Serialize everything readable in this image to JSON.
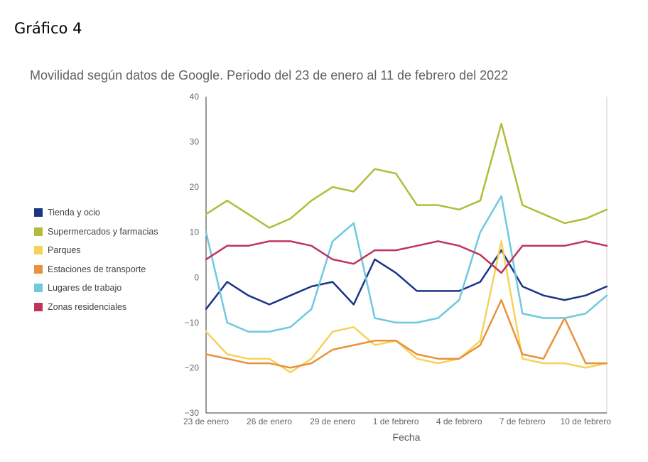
{
  "figure_label": "Gráfico 4",
  "chart_data": {
    "type": "line",
    "title": "Movilidad según datos de Google. Periodo del 23 de enero al 11 de febrero del 2022",
    "xlabel": "Fecha",
    "ylabel": "",
    "ylim": [
      -30,
      40
    ],
    "yticks": [
      40,
      30,
      20,
      10,
      0,
      -10,
      -20,
      -30
    ],
    "x": [
      "23 de enero",
      "24 de enero",
      "25 de enero",
      "26 de enero",
      "27 de enero",
      "28 de enero",
      "29 de enero",
      "30 de enero",
      "31 de enero",
      "1 de febrero",
      "2 de febrero",
      "3 de febrero",
      "4 de febrero",
      "5 de febrero",
      "6 de febrero",
      "7 de febrero",
      "8 de febrero",
      "9 de febrero",
      "10 de febrero",
      "11 de febrero"
    ],
    "xtick_labels": [
      "23 de enero",
      "26 de enero",
      "29 de enero",
      "1 de febrero",
      "4 de febrero",
      "7 de febrero",
      "10 de febrero"
    ],
    "xtick_indices": [
      0,
      3,
      6,
      9,
      12,
      15,
      18
    ],
    "grid": false,
    "legend_position": "left",
    "series": [
      {
        "name": "Tienda y ocio",
        "color": "#1a3585",
        "values": [
          -7,
          -1,
          -4,
          -6,
          -4,
          -2,
          -1,
          -6,
          4,
          1,
          -3,
          -3,
          -3,
          -1,
          6,
          -2,
          -4,
          -5,
          -4,
          -2
        ]
      },
      {
        "name": "Supermercados y farmacias",
        "color": "#b2bc3a",
        "values": [
          14,
          17,
          14,
          11,
          13,
          17,
          20,
          19,
          24,
          23,
          16,
          16,
          15,
          17,
          34,
          16,
          14,
          12,
          13,
          15
        ]
      },
      {
        "name": "Parques",
        "color": "#f5d35a",
        "values": [
          -12,
          -17,
          -18,
          -18,
          -21,
          -18,
          -12,
          -11,
          -15,
          -14,
          -18,
          -19,
          -18,
          -14,
          8,
          -18,
          -19,
          -19,
          -20,
          -19
        ]
      },
      {
        "name": "Estaciones de transporte",
        "color": "#e9913b",
        "values": [
          -17,
          -18,
          -19,
          -19,
          -20,
          -19,
          -16,
          -15,
          -14,
          -14,
          -17,
          -18,
          -18,
          -15,
          -5,
          -17,
          -18,
          -9,
          -19,
          -19
        ]
      },
      {
        "name": "Lugares de trabajo",
        "color": "#6ec9e0",
        "values": [
          10,
          -10,
          -12,
          -12,
          -11,
          -7,
          8,
          12,
          -9,
          -10,
          -10,
          -9,
          -5,
          10,
          18,
          -8,
          -9,
          -9,
          -8,
          -4
        ]
      },
      {
        "name": "Zonas residenciales",
        "color": "#c0345a",
        "values": [
          4,
          7,
          7,
          8,
          8,
          7,
          4,
          3,
          6,
          6,
          7,
          8,
          7,
          5,
          1,
          7,
          7,
          7,
          8,
          7
        ]
      }
    ]
  }
}
